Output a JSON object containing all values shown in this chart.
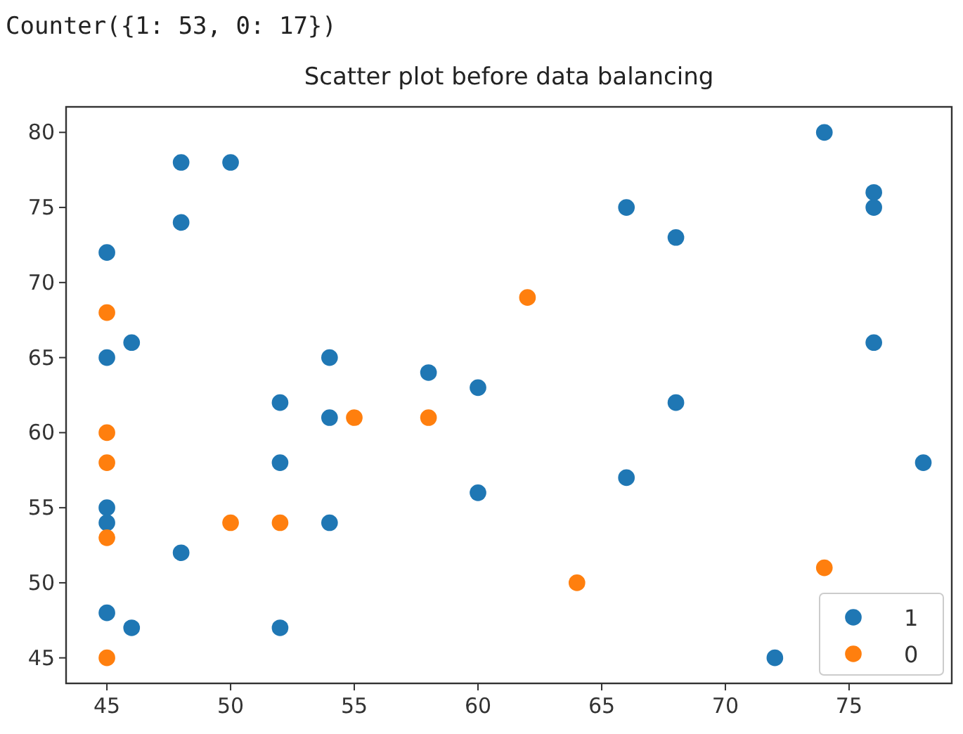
{
  "chart_data": {
    "type": "scatter",
    "title": "Scatter plot before data balancing",
    "annotations": [
      "Counter({1: 53, 0: 17})"
    ],
    "series": [
      {
        "name": "1",
        "color": "#1f77b4",
        "x": [
          45,
          45,
          45,
          45,
          45,
          46,
          46,
          48,
          48,
          48,
          50,
          52,
          52,
          52,
          54,
          54,
          54,
          58,
          60,
          60,
          66,
          66,
          68,
          68,
          72,
          74,
          76,
          76,
          76,
          78
        ],
        "values": [
          72,
          65,
          55,
          54,
          48,
          66,
          47,
          78,
          74,
          52,
          78,
          62,
          58,
          47,
          65,
          61,
          54,
          64,
          63,
          56,
          75,
          57,
          73,
          62,
          45,
          80,
          76,
          75,
          66,
          58
        ]
      },
      {
        "name": "0",
        "color": "#ff7f0e",
        "x": [
          45,
          45,
          45,
          45,
          45,
          50,
          52,
          55,
          58,
          62,
          64,
          74
        ],
        "values": [
          68,
          60,
          58,
          53,
          45,
          54,
          54,
          61,
          61,
          69,
          50,
          51
        ]
      }
    ],
    "xlim": [
      43.35,
      79.15
    ],
    "ylim": [
      43.3,
      81.7
    ],
    "xticks": [
      45,
      50,
      55,
      60,
      65,
      70,
      75
    ],
    "yticks": [
      45,
      50,
      55,
      60,
      65,
      70,
      75,
      80
    ],
    "grid": false,
    "legend": "bottom right",
    "marker": "circle"
  }
}
